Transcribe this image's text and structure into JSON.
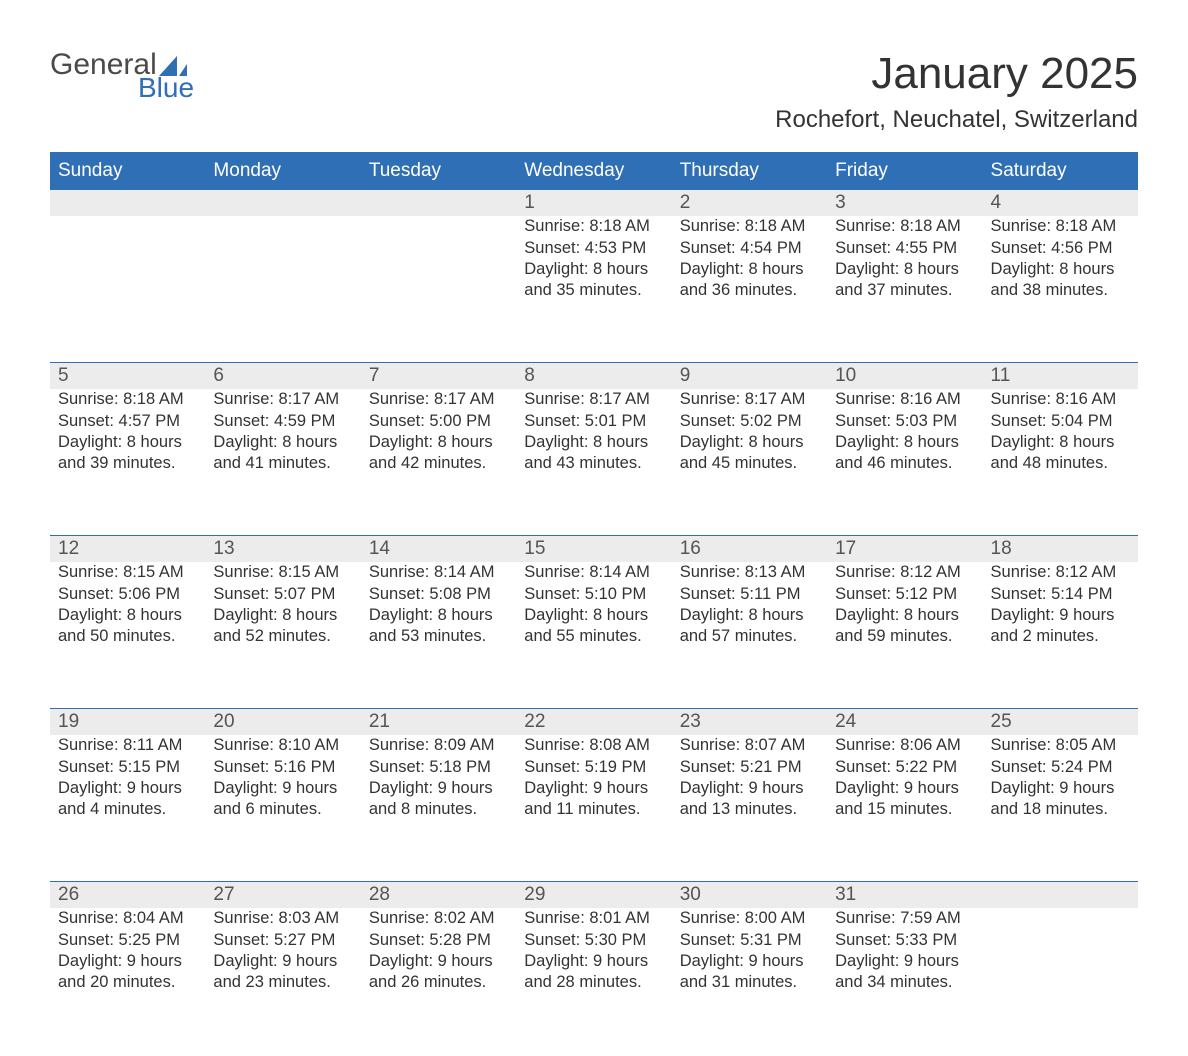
{
  "brand": {
    "word1": "General",
    "word2": "Blue",
    "accent_color": "#2f6fb5",
    "text_color": "#4a4a4a"
  },
  "title": "January 2025",
  "location": "Rochefort, Neuchatel, Switzerland",
  "colors": {
    "header_bg": "#2f6fb5",
    "header_text": "#ffffff",
    "daynum_bg": "#ececec",
    "body_text": "#333333",
    "rule": "#2f6fb5",
    "page_bg": "#ffffff"
  },
  "day_headers": [
    "Sunday",
    "Monday",
    "Tuesday",
    "Wednesday",
    "Thursday",
    "Friday",
    "Saturday"
  ],
  "weeks": [
    [
      null,
      null,
      null,
      {
        "n": "1",
        "sunrise": "Sunrise: 8:18 AM",
        "sunset": "Sunset: 4:53 PM",
        "d1": "Daylight: 8 hours",
        "d2": "and 35 minutes."
      },
      {
        "n": "2",
        "sunrise": "Sunrise: 8:18 AM",
        "sunset": "Sunset: 4:54 PM",
        "d1": "Daylight: 8 hours",
        "d2": "and 36 minutes."
      },
      {
        "n": "3",
        "sunrise": "Sunrise: 8:18 AM",
        "sunset": "Sunset: 4:55 PM",
        "d1": "Daylight: 8 hours",
        "d2": "and 37 minutes."
      },
      {
        "n": "4",
        "sunrise": "Sunrise: 8:18 AM",
        "sunset": "Sunset: 4:56 PM",
        "d1": "Daylight: 8 hours",
        "d2": "and 38 minutes."
      }
    ],
    [
      {
        "n": "5",
        "sunrise": "Sunrise: 8:18 AM",
        "sunset": "Sunset: 4:57 PM",
        "d1": "Daylight: 8 hours",
        "d2": "and 39 minutes."
      },
      {
        "n": "6",
        "sunrise": "Sunrise: 8:17 AM",
        "sunset": "Sunset: 4:59 PM",
        "d1": "Daylight: 8 hours",
        "d2": "and 41 minutes."
      },
      {
        "n": "7",
        "sunrise": "Sunrise: 8:17 AM",
        "sunset": "Sunset: 5:00 PM",
        "d1": "Daylight: 8 hours",
        "d2": "and 42 minutes."
      },
      {
        "n": "8",
        "sunrise": "Sunrise: 8:17 AM",
        "sunset": "Sunset: 5:01 PM",
        "d1": "Daylight: 8 hours",
        "d2": "and 43 minutes."
      },
      {
        "n": "9",
        "sunrise": "Sunrise: 8:17 AM",
        "sunset": "Sunset: 5:02 PM",
        "d1": "Daylight: 8 hours",
        "d2": "and 45 minutes."
      },
      {
        "n": "10",
        "sunrise": "Sunrise: 8:16 AM",
        "sunset": "Sunset: 5:03 PM",
        "d1": "Daylight: 8 hours",
        "d2": "and 46 minutes."
      },
      {
        "n": "11",
        "sunrise": "Sunrise: 8:16 AM",
        "sunset": "Sunset: 5:04 PM",
        "d1": "Daylight: 8 hours",
        "d2": "and 48 minutes."
      }
    ],
    [
      {
        "n": "12",
        "sunrise": "Sunrise: 8:15 AM",
        "sunset": "Sunset: 5:06 PM",
        "d1": "Daylight: 8 hours",
        "d2": "and 50 minutes."
      },
      {
        "n": "13",
        "sunrise": "Sunrise: 8:15 AM",
        "sunset": "Sunset: 5:07 PM",
        "d1": "Daylight: 8 hours",
        "d2": "and 52 minutes."
      },
      {
        "n": "14",
        "sunrise": "Sunrise: 8:14 AM",
        "sunset": "Sunset: 5:08 PM",
        "d1": "Daylight: 8 hours",
        "d2": "and 53 minutes."
      },
      {
        "n": "15",
        "sunrise": "Sunrise: 8:14 AM",
        "sunset": "Sunset: 5:10 PM",
        "d1": "Daylight: 8 hours",
        "d2": "and 55 minutes."
      },
      {
        "n": "16",
        "sunrise": "Sunrise: 8:13 AM",
        "sunset": "Sunset: 5:11 PM",
        "d1": "Daylight: 8 hours",
        "d2": "and 57 minutes."
      },
      {
        "n": "17",
        "sunrise": "Sunrise: 8:12 AM",
        "sunset": "Sunset: 5:12 PM",
        "d1": "Daylight: 8 hours",
        "d2": "and 59 minutes."
      },
      {
        "n": "18",
        "sunrise": "Sunrise: 8:12 AM",
        "sunset": "Sunset: 5:14 PM",
        "d1": "Daylight: 9 hours",
        "d2": "and 2 minutes."
      }
    ],
    [
      {
        "n": "19",
        "sunrise": "Sunrise: 8:11 AM",
        "sunset": "Sunset: 5:15 PM",
        "d1": "Daylight: 9 hours",
        "d2": "and 4 minutes."
      },
      {
        "n": "20",
        "sunrise": "Sunrise: 8:10 AM",
        "sunset": "Sunset: 5:16 PM",
        "d1": "Daylight: 9 hours",
        "d2": "and 6 minutes."
      },
      {
        "n": "21",
        "sunrise": "Sunrise: 8:09 AM",
        "sunset": "Sunset: 5:18 PM",
        "d1": "Daylight: 9 hours",
        "d2": "and 8 minutes."
      },
      {
        "n": "22",
        "sunrise": "Sunrise: 8:08 AM",
        "sunset": "Sunset: 5:19 PM",
        "d1": "Daylight: 9 hours",
        "d2": "and 11 minutes."
      },
      {
        "n": "23",
        "sunrise": "Sunrise: 8:07 AM",
        "sunset": "Sunset: 5:21 PM",
        "d1": "Daylight: 9 hours",
        "d2": "and 13 minutes."
      },
      {
        "n": "24",
        "sunrise": "Sunrise: 8:06 AM",
        "sunset": "Sunset: 5:22 PM",
        "d1": "Daylight: 9 hours",
        "d2": "and 15 minutes."
      },
      {
        "n": "25",
        "sunrise": "Sunrise: 8:05 AM",
        "sunset": "Sunset: 5:24 PM",
        "d1": "Daylight: 9 hours",
        "d2": "and 18 minutes."
      }
    ],
    [
      {
        "n": "26",
        "sunrise": "Sunrise: 8:04 AM",
        "sunset": "Sunset: 5:25 PM",
        "d1": "Daylight: 9 hours",
        "d2": "and 20 minutes."
      },
      {
        "n": "27",
        "sunrise": "Sunrise: 8:03 AM",
        "sunset": "Sunset: 5:27 PM",
        "d1": "Daylight: 9 hours",
        "d2": "and 23 minutes."
      },
      {
        "n": "28",
        "sunrise": "Sunrise: 8:02 AM",
        "sunset": "Sunset: 5:28 PM",
        "d1": "Daylight: 9 hours",
        "d2": "and 26 minutes."
      },
      {
        "n": "29",
        "sunrise": "Sunrise: 8:01 AM",
        "sunset": "Sunset: 5:30 PM",
        "d1": "Daylight: 9 hours",
        "d2": "and 28 minutes."
      },
      {
        "n": "30",
        "sunrise": "Sunrise: 8:00 AM",
        "sunset": "Sunset: 5:31 PM",
        "d1": "Daylight: 9 hours",
        "d2": "and 31 minutes."
      },
      {
        "n": "31",
        "sunrise": "Sunrise: 7:59 AM",
        "sunset": "Sunset: 5:33 PM",
        "d1": "Daylight: 9 hours",
        "d2": "and 34 minutes."
      },
      null
    ]
  ]
}
